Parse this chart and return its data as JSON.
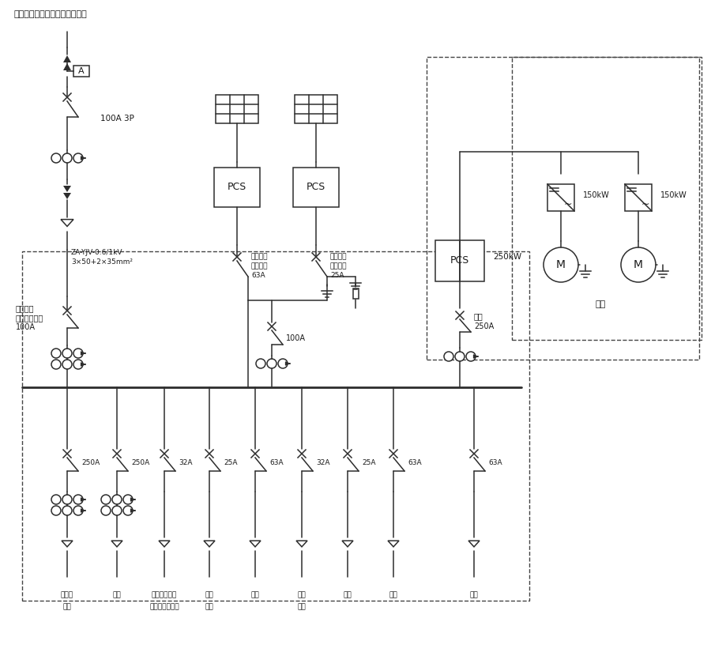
{
  "bg": "#ffffff",
  "lc": "#2d2d2d",
  "tc": "#1a1a1a",
  "dc": "#444444",
  "fw": 9.0,
  "fh": 8.3,
  "dpi": 100,
  "title": "現有低壓柜（冷機水泵配電柜）",
  "label_100A3P": "100A 3P",
  "label_cable1": "ZA-YJV-0.6/1kV",
  "label_cable2": "3×50+2×35mm²",
  "label_grid1": "市電進線",
  "label_grid2": "加防逆流裝置",
  "label_grid3": "100A",
  "label_pv1a": "光伏進線",
  "label_pv1b": "失壓脫扣",
  "label_pv1c": "63A",
  "label_pv2a": "光伏進線",
  "label_pv2b": "失壓脫扣",
  "label_pv2c": "25A",
  "label_100A": "100A",
  "label_flywheel": "飛輪",
  "label_fw250": "250A",
  "label_250kw": "250kW",
  "label_150kw": "150kW",
  "label_fly": "飛輪",
  "load_amps": [
    "250A",
    "250A",
    "32A",
    "25A",
    "63A",
    "32A",
    "25A",
    "63A",
    "63A"
  ],
  "load_l1": [
    "充電柱",
    "備用",
    "飛輪輔助電源",
    "備用",
    "備用",
    "備用",
    "備用",
    "備用",
    "備用"
  ],
  "load_l2": [
    "備用",
    "",
    "磁懸浮軸承電源",
    "備用",
    "",
    "備用",
    "",
    "",
    ""
  ]
}
